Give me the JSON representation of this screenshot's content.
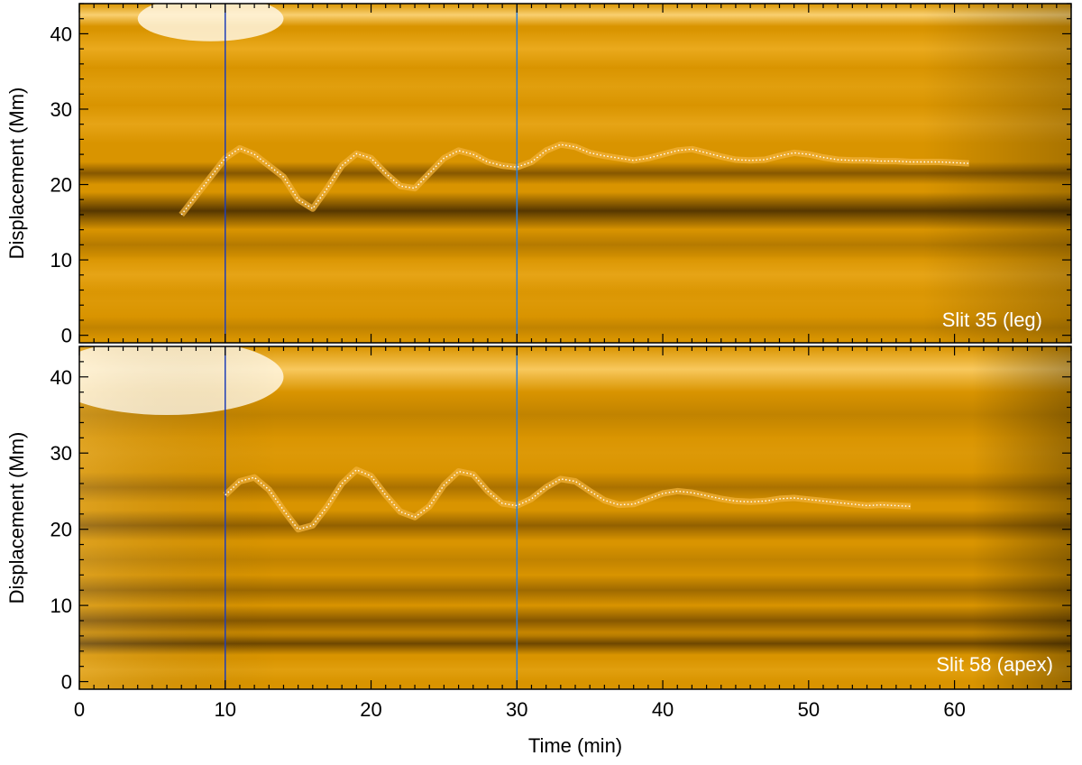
{
  "chart_data": [
    {
      "type": "heatmap",
      "panel": "top",
      "annotation": "Slit 35 (leg)",
      "ylabel": "Displacement (Mm)",
      "xlim": [
        0,
        68
      ],
      "ylim": [
        -1,
        44
      ],
      "xticks": [
        0,
        10,
        20,
        30,
        40,
        50,
        60
      ],
      "yticks": [
        0,
        10,
        20,
        30,
        40
      ],
      "ytick_labels": [
        "0",
        "10",
        "20",
        "30",
        "40"
      ],
      "vertical_lines": [
        {
          "x": 10,
          "color": "#1f3fb8"
        },
        {
          "x": 30,
          "color": "#2a7fe0"
        }
      ],
      "colormap": [
        "#000000",
        "#3a2400",
        "#8a5a00",
        "#d99400",
        "#f5b830",
        "#fde6b0",
        "#ffffff"
      ],
      "bands": [
        {
          "y": 42.5,
          "w": 1.5,
          "v": 0.5
        },
        {
          "y": 38,
          "w": 2.5,
          "v": 0.2
        },
        {
          "y": 33,
          "w": 2.5,
          "v": 0.1
        },
        {
          "y": 28,
          "w": 2.5,
          "v": 0.15
        },
        {
          "y": 21.5,
          "w": 1.5,
          "v": -0.35
        },
        {
          "y": 16.5,
          "w": 2.5,
          "v": -0.55
        },
        {
          "y": 12,
          "w": 2,
          "v": -0.15
        },
        {
          "y": 8,
          "w": 2.5,
          "v": 0.15
        },
        {
          "y": 4.5,
          "w": 2,
          "v": 0.05
        },
        {
          "y": 1,
          "w": 1.5,
          "v": -0.1
        }
      ],
      "blob": {
        "x": 9,
        "y": 42,
        "rx": 5,
        "ry": 3
      },
      "series": [
        {
          "line": "white-dotted",
          "x": [
            7,
            8,
            9,
            10,
            11,
            12,
            13,
            14,
            15,
            16,
            17,
            18,
            19,
            20,
            21,
            22,
            23,
            24,
            25,
            26,
            27,
            28,
            29,
            30,
            31,
            32,
            33,
            34,
            35,
            36,
            37,
            38,
            39,
            40,
            41,
            42,
            43,
            44,
            45,
            46,
            47,
            48,
            49,
            50,
            51,
            52,
            53,
            54,
            55,
            56,
            57,
            58,
            59,
            60,
            61
          ],
          "y": [
            16,
            18.5,
            21,
            23.5,
            24.8,
            24,
            22.5,
            21,
            18,
            16.8,
            19.5,
            22.5,
            24.1,
            23.5,
            21.5,
            19.8,
            19.5,
            21.5,
            23.5,
            24.5,
            24,
            23,
            22.5,
            22.3,
            23,
            24.5,
            25.3,
            25,
            24.2,
            23.8,
            23.5,
            23.2,
            23.5,
            24,
            24.5,
            24.7,
            24.2,
            23.7,
            23.3,
            23.2,
            23.3,
            23.8,
            24.2,
            24,
            23.6,
            23.3,
            23.2,
            23.2,
            23.1,
            23.1,
            23,
            23,
            23,
            22.9,
            22.8
          ]
        }
      ]
    },
    {
      "type": "heatmap",
      "panel": "bottom",
      "annotation": "Slit 58 (apex)",
      "ylabel": "Displacement (Mm)",
      "xlabel": "Time (min)",
      "xlim": [
        0,
        68
      ],
      "ylim": [
        -1,
        44
      ],
      "xticks": [
        0,
        10,
        20,
        30,
        40,
        50,
        60
      ],
      "xtick_labels": [
        "0",
        "10",
        "20",
        "30",
        "40",
        "50",
        "60"
      ],
      "yticks": [
        0,
        10,
        20,
        30,
        40
      ],
      "ytick_labels": [
        "0",
        "10",
        "20",
        "30",
        "40"
      ],
      "vertical_lines": [
        {
          "x": 10,
          "color": "#1f3fb8"
        },
        {
          "x": 30,
          "color": "#2a7fe0"
        }
      ],
      "colormap": [
        "#000000",
        "#3a2400",
        "#8a5a00",
        "#d99400",
        "#f5b830",
        "#fde6b0",
        "#ffffff"
      ],
      "bands": [
        {
          "y": 41,
          "w": 3,
          "v": 0.45
        },
        {
          "y": 35,
          "w": 3,
          "v": -0.1
        },
        {
          "y": 30,
          "w": 2.5,
          "v": 0.05
        },
        {
          "y": 25.5,
          "w": 2,
          "v": -0.2
        },
        {
          "y": 20.5,
          "w": 2,
          "v": -0.3
        },
        {
          "y": 16,
          "w": 2,
          "v": -0.1
        },
        {
          "y": 12,
          "w": 2,
          "v": -0.25
        },
        {
          "y": 8,
          "w": 2,
          "v": -0.35
        },
        {
          "y": 5,
          "w": 1.5,
          "v": -0.45
        },
        {
          "y": 1.5,
          "w": 1.5,
          "v": 0.1
        }
      ],
      "blob": {
        "x": 6,
        "y": 40,
        "rx": 8,
        "ry": 5
      },
      "series": [
        {
          "line": "white-dotted",
          "x": [
            10,
            11,
            12,
            13,
            14,
            15,
            16,
            17,
            18,
            19,
            20,
            21,
            22,
            23,
            24,
            25,
            26,
            27,
            28,
            29,
            30,
            31,
            32,
            33,
            34,
            35,
            36,
            37,
            38,
            39,
            40,
            41,
            42,
            43,
            44,
            45,
            46,
            47,
            48,
            49,
            50,
            51,
            52,
            53,
            54,
            55,
            56,
            57
          ],
          "y": [
            24.5,
            26.3,
            26.8,
            25.2,
            22.5,
            20,
            20.5,
            23,
            26,
            27.8,
            27,
            24.5,
            22.3,
            21.6,
            23,
            25.8,
            27.6,
            27.2,
            25,
            23.4,
            23.1,
            24,
            25.5,
            26.6,
            26.3,
            25,
            23.8,
            23.2,
            23.3,
            24,
            24.7,
            25,
            24.8,
            24.4,
            24,
            23.7,
            23.6,
            23.7,
            24,
            24.1,
            23.9,
            23.7,
            23.5,
            23.3,
            23.1,
            23.2,
            23.1,
            23
          ]
        }
      ]
    }
  ]
}
